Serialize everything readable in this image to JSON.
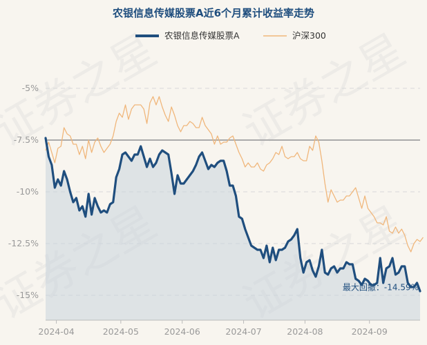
{
  "chart_data": {
    "type": "line",
    "title": "农银信息传媒股票A近6个月累计收益率走势",
    "legend_position": "top-center",
    "ylim": [
      -16.2,
      -3.4
    ],
    "yticks": [
      {
        "value": -5,
        "label": "-5%"
      },
      {
        "value": -7.5,
        "label": "-7.5%"
      },
      {
        "value": -10,
        "label": "-10%"
      },
      {
        "value": -12.5,
        "label": "-12.5%"
      },
      {
        "value": -15,
        "label": "-15%"
      }
    ],
    "xticks": [
      "2024-04",
      "2024-05",
      "2024-06",
      "2024-07",
      "2024-08",
      "2024-09"
    ],
    "xtick_positions": [
      3.5,
      24.5,
      44.5,
      64.5,
      84.5,
      105.5
    ],
    "x_count": 123,
    "reference_line": -7.5,
    "grid": true,
    "series": [
      {
        "name": "农银信息传媒股票A",
        "color": "#1f4e7e",
        "area": true,
        "values": [
          -7.4,
          -8.3,
          -8.7,
          -9.8,
          -9.4,
          -9.7,
          -9.0,
          -9.4,
          -10.0,
          -10.5,
          -10.3,
          -10.9,
          -10.7,
          -11.2,
          -10.1,
          -11.1,
          -10.3,
          -10.7,
          -11.0,
          -10.9,
          -11.0,
          -10.6,
          -10.5,
          -9.3,
          -8.9,
          -8.2,
          -8.1,
          -8.3,
          -8.5,
          -8.2,
          -8.2,
          -7.8,
          -8.3,
          -8.8,
          -8.4,
          -8.8,
          -8.6,
          -8.2,
          -8.0,
          -8.1,
          -8.2,
          -9.1,
          -10.1,
          -9.2,
          -9.6,
          -9.6,
          -9.4,
          -9.2,
          -9.0,
          -8.7,
          -8.3,
          -8.1,
          -8.5,
          -8.9,
          -8.7,
          -8.8,
          -8.6,
          -8.5,
          -8.5,
          -9.0,
          -9.7,
          -9.7,
          -10.2,
          -11.2,
          -11.3,
          -11.8,
          -12.2,
          -12.6,
          -12.7,
          -12.8,
          -12.8,
          -13.2,
          -12.6,
          -13.4,
          -12.7,
          -13.3,
          -12.8,
          -12.8,
          -12.7,
          -12.4,
          -12.3,
          -12.1,
          -11.8,
          -13.2,
          -13.9,
          -13.4,
          -13.3,
          -13.8,
          -14.1,
          -13.6,
          -12.8,
          -13.9,
          -14.0,
          -13.7,
          -13.6,
          -13.9,
          -13.7,
          -13.7,
          -13.4,
          -13.5,
          -13.5,
          -14.2,
          -14.3,
          -14.5,
          -14.2,
          -14.3,
          -14.5,
          -14.5,
          -14.4,
          -13.2,
          -14.4,
          -13.7,
          -13.6,
          -13.2,
          -14.0,
          -13.9,
          -13.6,
          -13.6,
          -14.4,
          -14.6,
          -14.6,
          -14.4,
          -14.8
        ]
      },
      {
        "name": "沪深300",
        "color": "#f0b67a",
        "area": false,
        "values": [
          -8.0,
          -7.6,
          -8.1,
          -8.6,
          -7.9,
          -7.8,
          -6.9,
          -7.2,
          -7.3,
          -7.7,
          -7.7,
          -8.2,
          -7.8,
          -8.4,
          -7.5,
          -8.1,
          -7.6,
          -7.4,
          -7.8,
          -8.1,
          -7.9,
          -7.7,
          -7.3,
          -6.6,
          -6.2,
          -6.4,
          -5.8,
          -6.5,
          -6.0,
          -5.8,
          -5.8,
          -5.8,
          -6.0,
          -6.7,
          -5.7,
          -5.4,
          -5.8,
          -5.4,
          -5.9,
          -6.3,
          -6.6,
          -5.9,
          -6.3,
          -6.8,
          -7.1,
          -6.8,
          -6.8,
          -6.6,
          -6.7,
          -6.9,
          -6.9,
          -6.4,
          -6.8,
          -7.0,
          -7.2,
          -7.7,
          -7.3,
          -7.7,
          -7.6,
          -7.6,
          -7.4,
          -7.3,
          -7.7,
          -8.1,
          -8.4,
          -8.8,
          -8.6,
          -8.8,
          -8.8,
          -8.6,
          -8.9,
          -9.0,
          -8.7,
          -8.6,
          -8.4,
          -8.1,
          -8.2,
          -7.8,
          -8.3,
          -8.4,
          -8.3,
          -8.3,
          -8.1,
          -8.4,
          -8.5,
          -8.5,
          -7.8,
          -8.0,
          -7.3,
          -7.6,
          -8.5,
          -9.6,
          -10.5,
          -9.9,
          -10.2,
          -10.5,
          -10.4,
          -10.4,
          -10.2,
          -10.2,
          -10.0,
          -9.8,
          -10.3,
          -10.8,
          -10.2,
          -10.8,
          -11.0,
          -11.2,
          -11.5,
          -11.5,
          -11.6,
          -11.2,
          -11.9,
          -12.0,
          -11.7,
          -12.0,
          -11.8,
          -12.1,
          -12.6,
          -12.9,
          -12.5,
          -12.3,
          -12.4,
          -12.2
        ]
      }
    ],
    "annotation": {
      "text": "最大回撤：-14.59%",
      "index": 121,
      "value": -14.59
    }
  },
  "watermark": {
    "text": "证券之星"
  }
}
